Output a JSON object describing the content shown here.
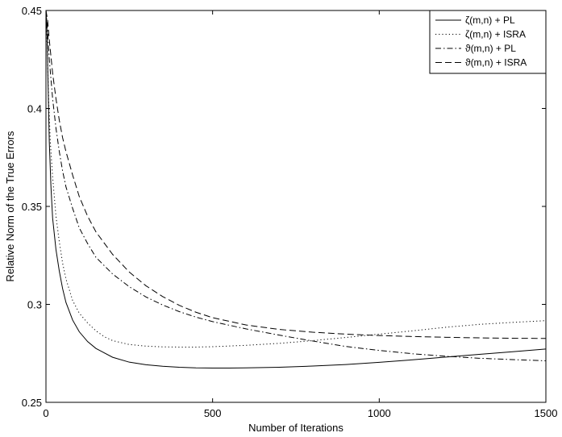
{
  "chart_data": {
    "type": "line",
    "title": "",
    "xlabel": "Number of Iterations",
    "ylabel": "Relative Norm of the True Errors",
    "xlim": [
      0,
      1500
    ],
    "ylim": [
      0.25,
      0.45
    ],
    "xticks": [
      0,
      500,
      1000,
      1500
    ],
    "xtick_labels": [
      "0",
      "500",
      "1000",
      "1500"
    ],
    "yticks": [
      0.25,
      0.3,
      0.35,
      0.4,
      0.45
    ],
    "ytick_labels": [
      "0.25",
      "0.3",
      "0.35",
      "0.4",
      "0.45"
    ],
    "grid": false,
    "legend_position": "top-right",
    "series": [
      {
        "name": "ζ(m,n) + PL",
        "line_style": "solid",
        "color": "#000000",
        "points": [
          [
            0,
            0.45
          ],
          [
            3,
            0.44
          ],
          [
            6,
            0.415
          ],
          [
            10,
            0.383
          ],
          [
            15,
            0.36
          ],
          [
            20,
            0.344
          ],
          [
            30,
            0.328
          ],
          [
            40,
            0.317
          ],
          [
            50,
            0.308
          ],
          [
            60,
            0.301
          ],
          [
            80,
            0.292
          ],
          [
            100,
            0.286
          ],
          [
            125,
            0.281
          ],
          [
            150,
            0.2775
          ],
          [
            200,
            0.273
          ],
          [
            250,
            0.2705
          ],
          [
            300,
            0.2692
          ],
          [
            350,
            0.2684
          ],
          [
            400,
            0.2679
          ],
          [
            450,
            0.2676
          ],
          [
            500,
            0.2675
          ],
          [
            550,
            0.2675
          ],
          [
            600,
            0.2676
          ],
          [
            700,
            0.2679
          ],
          [
            800,
            0.2685
          ],
          [
            900,
            0.2693
          ],
          [
            1000,
            0.2704
          ],
          [
            1100,
            0.2717
          ],
          [
            1200,
            0.2731
          ],
          [
            1300,
            0.2745
          ],
          [
            1400,
            0.2758
          ],
          [
            1500,
            0.2772
          ]
        ]
      },
      {
        "name": "ζ(m,n) + ISRA",
        "line_style": "dotted",
        "color": "#000000",
        "points": [
          [
            0,
            0.45
          ],
          [
            4,
            0.43
          ],
          [
            8,
            0.405
          ],
          [
            13,
            0.383
          ],
          [
            20,
            0.365
          ],
          [
            30,
            0.345
          ],
          [
            40,
            0.332
          ],
          [
            50,
            0.321
          ],
          [
            60,
            0.313
          ],
          [
            80,
            0.302
          ],
          [
            100,
            0.2955
          ],
          [
            125,
            0.2905
          ],
          [
            150,
            0.2865
          ],
          [
            175,
            0.2835
          ],
          [
            200,
            0.2815
          ],
          [
            250,
            0.2795
          ],
          [
            300,
            0.2787
          ],
          [
            350,
            0.2783
          ],
          [
            400,
            0.2782
          ],
          [
            450,
            0.2782
          ],
          [
            500,
            0.2784
          ],
          [
            600,
            0.2791
          ],
          [
            700,
            0.2801
          ],
          [
            800,
            0.2815
          ],
          [
            900,
            0.2831
          ],
          [
            1000,
            0.2848
          ],
          [
            1100,
            0.2865
          ],
          [
            1200,
            0.2883
          ],
          [
            1300,
            0.2898
          ],
          [
            1400,
            0.2908
          ],
          [
            1500,
            0.2917
          ]
        ]
      },
      {
        "name": "ϑ(m,n) + PL",
        "line_style": "dashdot",
        "color": "#000000",
        "points": [
          [
            0,
            0.45
          ],
          [
            5,
            0.44
          ],
          [
            10,
            0.425
          ],
          [
            20,
            0.405
          ],
          [
            30,
            0.39
          ],
          [
            40,
            0.378
          ],
          [
            50,
            0.368
          ],
          [
            60,
            0.36
          ],
          [
            80,
            0.349
          ],
          [
            100,
            0.339
          ],
          [
            125,
            0.331
          ],
          [
            150,
            0.324
          ],
          [
            200,
            0.3155
          ],
          [
            250,
            0.309
          ],
          [
            300,
            0.3038
          ],
          [
            350,
            0.2997
          ],
          [
            400,
            0.2963
          ],
          [
            450,
            0.2935
          ],
          [
            500,
            0.2912
          ],
          [
            600,
            0.2875
          ],
          [
            700,
            0.2843
          ],
          [
            800,
            0.2813
          ],
          [
            900,
            0.2785
          ],
          [
            1000,
            0.2765
          ],
          [
            1100,
            0.2748
          ],
          [
            1200,
            0.2735
          ],
          [
            1300,
            0.2725
          ],
          [
            1400,
            0.2718
          ],
          [
            1500,
            0.2712
          ]
        ]
      },
      {
        "name": "ϑ(m,n) + ISRA",
        "line_style": "dashed",
        "color": "#000000",
        "points": [
          [
            0,
            0.45
          ],
          [
            5,
            0.445
          ],
          [
            10,
            0.435
          ],
          [
            20,
            0.418
          ],
          [
            30,
            0.405
          ],
          [
            40,
            0.394
          ],
          [
            50,
            0.385
          ],
          [
            60,
            0.378
          ],
          [
            80,
            0.366
          ],
          [
            100,
            0.355
          ],
          [
            125,
            0.345
          ],
          [
            150,
            0.337
          ],
          [
            200,
            0.3255
          ],
          [
            250,
            0.3165
          ],
          [
            300,
            0.3095
          ],
          [
            350,
            0.304
          ],
          [
            400,
            0.2995
          ],
          [
            450,
            0.296
          ],
          [
            500,
            0.2932
          ],
          [
            600,
            0.2895
          ],
          [
            700,
            0.2872
          ],
          [
            800,
            0.2858
          ],
          [
            900,
            0.2848
          ],
          [
            1000,
            0.2841
          ],
          [
            1100,
            0.2836
          ],
          [
            1200,
            0.2832
          ],
          [
            1300,
            0.2829
          ],
          [
            1400,
            0.2827
          ],
          [
            1500,
            0.2826
          ]
        ]
      }
    ]
  }
}
